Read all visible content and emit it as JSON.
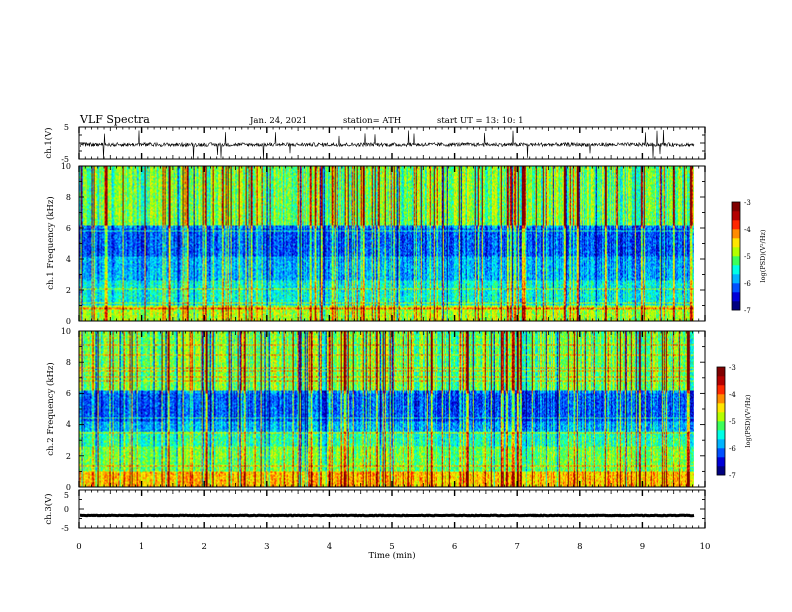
{
  "header": {
    "title": "VLF Spectra",
    "date": "Jan. 24, 2021",
    "station": "station= ATH",
    "start": "start UT =  13: 10: 1"
  },
  "colors": {
    "colormap": [
      "#000080",
      "#0000d8",
      "#0050ff",
      "#00b4ff",
      "#00ffe6",
      "#3cff5a",
      "#b4ff00",
      "#ffe600",
      "#ff8c00",
      "#ff2800",
      "#b40000",
      "#800000"
    ],
    "trace": "#000000"
  },
  "chart_data": [
    {
      "type": "line",
      "panel": "ch1-waveform",
      "ylabel": "ch.1(V)",
      "ylim": [
        -5,
        5
      ],
      "yticks": [
        "5",
        "-5"
      ],
      "xlim": [
        0,
        10
      ],
      "baseline": -0.5,
      "amplitude": 1.2
    },
    {
      "type": "heatmap",
      "panel": "ch1-spectrogram",
      "ylabel": "ch.1 Frequency (kHz)",
      "ylim": [
        0,
        10
      ],
      "yticks": [
        "0",
        "2",
        "4",
        "6",
        "8",
        "10"
      ],
      "xlim": [
        0,
        10
      ],
      "data_end_min": 9.83,
      "colorbar": {
        "label": "log(PSD)(V²/Hz)",
        "range": [
          -7,
          -3
        ],
        "ticks": [
          "-3",
          "-4",
          "-5",
          "-6",
          "-7"
        ]
      }
    },
    {
      "type": "heatmap",
      "panel": "ch2-spectrogram",
      "ylabel": "ch.2 Frequency (kHz)",
      "ylim": [
        0,
        10
      ],
      "yticks": [
        "0",
        "2",
        "4",
        "6",
        "8",
        "10"
      ],
      "xlim": [
        0,
        10
      ],
      "data_end_min": 9.83,
      "colorbar": {
        "label": "log(PSD)(V²/Hz)",
        "range": [
          -7,
          -3
        ],
        "ticks": [
          "-3",
          "-4",
          "-5",
          "-6",
          "-7"
        ]
      }
    },
    {
      "type": "line",
      "panel": "ch3-waveform",
      "ylabel": "ch.3(V)",
      "ylim": [
        -5,
        5
      ],
      "yticks": [
        "5",
        "0",
        "-5"
      ],
      "xlim": [
        0,
        10
      ],
      "baseline": -1.7,
      "amplitude": 0.15
    }
  ],
  "xaxis": {
    "label": "Time (min)",
    "ticks": [
      "0",
      "1",
      "2",
      "3",
      "4",
      "5",
      "6",
      "7",
      "8",
      "9",
      "10"
    ]
  }
}
